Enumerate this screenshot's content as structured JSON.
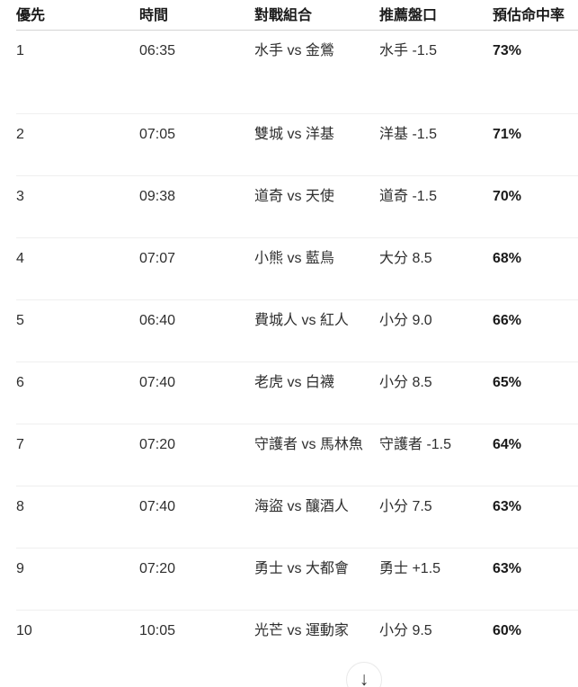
{
  "table": {
    "columns": [
      {
        "key": "priority",
        "label": "優先"
      },
      {
        "key": "time",
        "label": "時間"
      },
      {
        "key": "matchup",
        "label": "對戰組合"
      },
      {
        "key": "line",
        "label": "推薦盤口"
      },
      {
        "key": "hit_rate",
        "label": "預估命中率"
      }
    ],
    "rows": [
      {
        "priority": "1",
        "time": "06:35",
        "matchup": "水手 vs 金鶯",
        "line": "水手 -1.5",
        "hit_rate": "73%"
      },
      {
        "priority": "2",
        "time": "07:05",
        "matchup": "雙城 vs 洋基",
        "line": "洋基 -1.5",
        "hit_rate": "71%"
      },
      {
        "priority": "3",
        "time": "09:38",
        "matchup": "道奇 vs 天使",
        "line": "道奇 -1.5",
        "hit_rate": "70%"
      },
      {
        "priority": "4",
        "time": "07:07",
        "matchup": "小熊 vs 藍鳥",
        "line": "大分 8.5",
        "hit_rate": "68%"
      },
      {
        "priority": "5",
        "time": "06:40",
        "matchup": "費城人 vs 紅人",
        "line": "小分 9.0",
        "hit_rate": "66%"
      },
      {
        "priority": "6",
        "time": "07:40",
        "matchup": "老虎 vs 白襪",
        "line": "小分 8.5",
        "hit_rate": "65%"
      },
      {
        "priority": "7",
        "time": "07:20",
        "matchup": "守護者 vs 馬林魚",
        "line": "守護者 -1.5",
        "hit_rate": "64%"
      },
      {
        "priority": "8",
        "time": "07:40",
        "matchup": "海盜 vs 釀酒人",
        "line": "小分 7.5",
        "hit_rate": "63%"
      },
      {
        "priority": "9",
        "time": "07:20",
        "matchup": "勇士 vs 大都會",
        "line": "勇士 +1.5",
        "hit_rate": "63%"
      },
      {
        "priority": "10",
        "time": "10:05",
        "matchup": "光芒 vs 運動家",
        "line": "小分 9.5",
        "hit_rate": "60%"
      }
    ]
  },
  "scroll_button": {
    "glyph": "↓"
  },
  "colors": {
    "header_text": "#1a1a1a",
    "body_text": "#2e2e2e",
    "header_divider": "#d4d4d4",
    "row_divider": "#efefef",
    "button_border": "#e9e9e9",
    "background": "#ffffff"
  }
}
